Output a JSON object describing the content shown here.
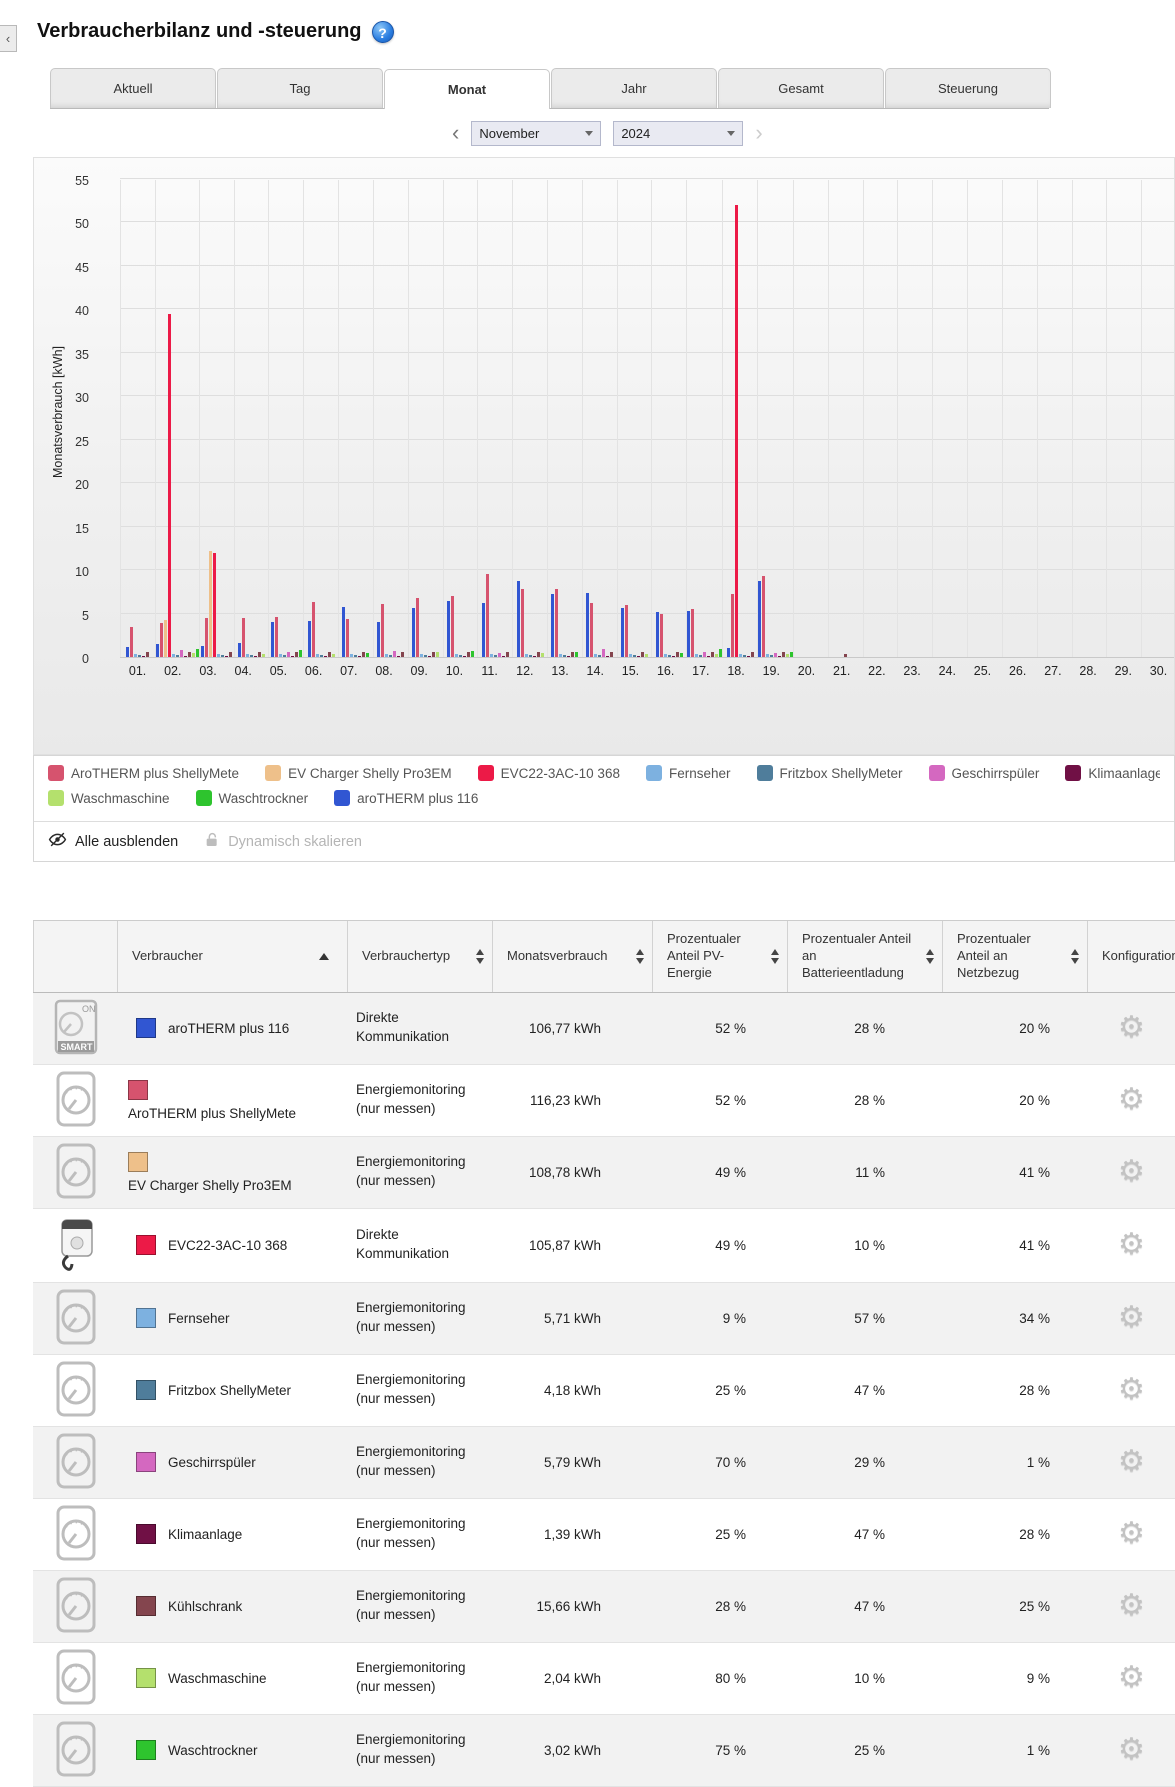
{
  "page": {
    "title": "Verbraucherbilanz und -steuerung"
  },
  "icons": {
    "collapse": "‹",
    "prev": "‹",
    "next": "›",
    "gear": "⚙",
    "smart_on": "ON",
    "smart_label": "SMART",
    "help": "?"
  },
  "tabs": {
    "items": [
      {
        "label": "Aktuell"
      },
      {
        "label": "Tag"
      },
      {
        "label": "Monat"
      },
      {
        "label": "Jahr"
      },
      {
        "label": "Gesamt"
      },
      {
        "label": "Steuerung"
      }
    ]
  },
  "date_nav": {
    "month": "November",
    "year": "2024"
  },
  "chart_data": {
    "type": "bar",
    "title": "",
    "xlabel": "",
    "ylabel": "Monatsverbrauch [kWh]",
    "ylim": [
      0,
      55
    ],
    "ytick_step": 5,
    "grid": true,
    "legend_position": "bottom",
    "categories": [
      "01.",
      "02.",
      "03.",
      "04.",
      "05.",
      "06.",
      "07.",
      "08.",
      "09.",
      "10.",
      "11.",
      "12.",
      "13.",
      "14.",
      "15.",
      "16.",
      "17.",
      "18.",
      "19.",
      "20.",
      "21.",
      "22.",
      "23.",
      "24.",
      "25.",
      "26.",
      "27.",
      "28.",
      "29.",
      "30."
    ],
    "series": [
      {
        "name": "aroTHERM plus 116",
        "color": "#3156d2",
        "values": [
          1.2,
          1.5,
          1.3,
          1.6,
          4.0,
          4.2,
          5.8,
          4.0,
          5.6,
          6.4,
          6.2,
          8.8,
          7.3,
          7.4,
          5.6,
          5.2,
          5.3,
          1.0,
          8.7,
          0,
          0,
          0,
          0,
          0,
          0,
          0,
          0,
          0,
          0,
          0
        ]
      },
      {
        "name": "AroTHERM plus ShellyMete",
        "color": "#d6536e",
        "values": [
          3.5,
          3.9,
          4.5,
          4.5,
          4.6,
          6.3,
          4.4,
          6.1,
          6.8,
          7.0,
          9.5,
          7.8,
          7.8,
          6.2,
          6.0,
          5.0,
          5.5,
          7.2,
          9.3,
          0,
          0,
          0,
          0,
          0,
          0,
          0,
          0,
          0,
          0,
          0
        ]
      },
      {
        "name": "EV Charger Shelly Pro3EM",
        "color": "#eec08a",
        "values": [
          0,
          4.3,
          12.2,
          0,
          0,
          0,
          0,
          0,
          0,
          0,
          0,
          0,
          0,
          0,
          0,
          0,
          0,
          0,
          0,
          0,
          0,
          0,
          0,
          0,
          0,
          0,
          0,
          0,
          0,
          0
        ]
      },
      {
        "name": "EVC22-3AC-10 368",
        "color": "#ec1a47",
        "values": [
          0,
          39.5,
          12.0,
          0,
          0,
          0,
          0,
          0,
          0,
          0,
          0,
          0,
          0,
          0,
          0,
          0,
          0,
          52,
          0,
          0,
          0,
          0,
          0,
          0,
          0,
          0,
          0,
          0,
          0,
          0
        ]
      },
      {
        "name": "Fernseher",
        "color": "#7db1e0",
        "values": [
          0.4,
          0.4,
          0.4,
          0.4,
          0.4,
          0.4,
          0.4,
          0.4,
          0.4,
          0.4,
          0.4,
          0.4,
          0.4,
          0.4,
          0.4,
          0.4,
          0.4,
          0.4,
          0.4,
          0,
          0,
          0,
          0,
          0,
          0,
          0,
          0,
          0,
          0,
          0
        ]
      },
      {
        "name": "Fritzbox ShellyMeter",
        "color": "#4f7d9b",
        "values": [
          0.25,
          0.25,
          0.25,
          0.25,
          0.25,
          0.25,
          0.25,
          0.25,
          0.25,
          0.25,
          0.25,
          0.25,
          0.25,
          0.25,
          0.25,
          0.25,
          0.25,
          0.25,
          0.25,
          0,
          0,
          0,
          0,
          0,
          0,
          0,
          0,
          0,
          0,
          0
        ]
      },
      {
        "name": "Geschirrspüler",
        "color": "#d468c0",
        "values": [
          0,
          0.8,
          0,
          0,
          0.6,
          0,
          0,
          0.7,
          0,
          0,
          0.5,
          0,
          0,
          0.9,
          0,
          0,
          0.6,
          0,
          0.5,
          0,
          0,
          0,
          0,
          0,
          0,
          0,
          0,
          0,
          0,
          0
        ]
      },
      {
        "name": "Klimaanlage",
        "color": "#701045",
        "values": [
          0.15,
          0.15,
          0.15,
          0.15,
          0.15,
          0.15,
          0.15,
          0.15,
          0.15,
          0.15,
          0.15,
          0.15,
          0.15,
          0.15,
          0.15,
          0.15,
          0.15,
          0.15,
          0.15,
          0,
          0,
          0,
          0,
          0,
          0,
          0,
          0,
          0,
          0,
          0
        ]
      },
      {
        "name": "Kühlschrank",
        "color": "#84454e",
        "values": [
          0.55,
          0.55,
          0.55,
          0.55,
          0.55,
          0.55,
          0.55,
          0.55,
          0.55,
          0.55,
          0.55,
          0.55,
          0.55,
          0.55,
          0.55,
          0.55,
          0.55,
          0.55,
          0.55,
          0,
          0.4,
          0,
          0,
          0,
          0,
          0,
          0,
          0,
          0,
          0
        ]
      },
      {
        "name": "Waschmaschine",
        "color": "#b4e06d",
        "values": [
          0,
          0.5,
          0,
          0.3,
          0,
          0.4,
          0,
          0,
          0.6,
          0,
          0,
          0.5,
          0,
          0,
          0.3,
          0,
          0.4,
          0,
          0.3,
          0,
          0,
          0,
          0,
          0,
          0,
          0,
          0,
          0,
          0,
          0
        ]
      },
      {
        "name": "Waschtrockner",
        "color": "#2ec42e",
        "values": [
          0,
          0.9,
          0,
          0,
          0.8,
          0,
          0.5,
          0,
          0,
          0.7,
          0,
          0,
          0.6,
          0,
          0,
          0.5,
          0.9,
          0,
          0.6,
          0,
          0,
          0,
          0,
          0,
          0,
          0,
          0,
          0,
          0,
          0
        ]
      }
    ]
  },
  "legend": {
    "rows": [
      {
        "items": [
          {
            "label": "AroTHERM plus ShellyMete",
            "color": "#d6536e"
          },
          {
            "label": "EV Charger Shelly Pro3EM",
            "color": "#eec08a"
          },
          {
            "label": "EVC22-3AC-10 368",
            "color": "#ec1a47"
          },
          {
            "label": "Fernseher",
            "color": "#7db1e0"
          },
          {
            "label": "Fritzbox ShellyMeter",
            "color": "#4f7d9b"
          },
          {
            "label": "Geschirrspüler",
            "color": "#d468c0"
          },
          {
            "label": "Klimaanlage",
            "color": "#701045"
          },
          {
            "label": "Kühlschrank",
            "color": "#84454e"
          }
        ]
      },
      {
        "items": [
          {
            "label": "Waschmaschine",
            "color": "#b4e06d"
          },
          {
            "label": "Waschtrockner",
            "color": "#2ec42e"
          },
          {
            "label": "aroTHERM plus 116",
            "color": "#3156d2"
          }
        ]
      }
    ]
  },
  "chart_actions": {
    "hide_all": "Alle ausblenden",
    "dynamic_scale": "Dynamisch skalieren"
  },
  "table": {
    "columns": [
      {
        "label": ""
      },
      {
        "label": "Verbraucher",
        "sort": "asc"
      },
      {
        "label": "Verbrauchertyp",
        "sort": "both"
      },
      {
        "label": "Monatsverbrauch",
        "sort": "both"
      },
      {
        "label": "Prozentualer Anteil PV-Energie",
        "sort": "both"
      },
      {
        "label": "Prozentualer Anteil an Batterieentladung",
        "sort": "both"
      },
      {
        "label": "Prozentualer Anteil an Netzbezug",
        "sort": "both"
      },
      {
        "label": "Konfiguration"
      }
    ],
    "rows": [
      {
        "icon": "smart-meter-toggle",
        "color": "#3156d2",
        "name": "aroTHERM plus 116",
        "type": "Direkte Kommunikation",
        "consumption": "106,77 kWh",
        "pv": "52 %",
        "battery": "28 %",
        "grid": "20 %"
      },
      {
        "icon": "meter-gauge",
        "color": "#d6536e",
        "name": "AroTHERM plus ShellyMete",
        "type": "Energiemonitoring (nur messen)",
        "consumption": "116,23 kWh",
        "pv": "52 %",
        "battery": "28 %",
        "grid": "20 %"
      },
      {
        "icon": "meter-gauge",
        "color": "#eec08a",
        "name": "EV Charger Shelly Pro3EM",
        "type": "Energiemonitoring (nur messen)",
        "consumption": "108,78 kWh",
        "pv": "49 %",
        "battery": "11 %",
        "grid": "41 %"
      },
      {
        "icon": "wallbox",
        "color": "#ec1a47",
        "name": "EVC22-3AC-10 368",
        "type": "Direkte Kommunikation",
        "consumption": "105,87 kWh",
        "pv": "49 %",
        "battery": "10 %",
        "grid": "41 %"
      },
      {
        "icon": "meter-gauge",
        "color": "#7db1e0",
        "name": "Fernseher",
        "type": "Energiemonitoring (nur messen)",
        "consumption": "5,71 kWh",
        "pv": "9 %",
        "battery": "57 %",
        "grid": "34 %"
      },
      {
        "icon": "meter-gauge",
        "color": "#4f7d9b",
        "name": "Fritzbox ShellyMeter",
        "type": "Energiemonitoring (nur messen)",
        "consumption": "4,18 kWh",
        "pv": "25 %",
        "battery": "47 %",
        "grid": "28 %"
      },
      {
        "icon": "meter-gauge",
        "color": "#d468c0",
        "name": "Geschirrspüler",
        "type": "Energiemonitoring (nur messen)",
        "consumption": "5,79 kWh",
        "pv": "70 %",
        "battery": "29 %",
        "grid": "1 %"
      },
      {
        "icon": "meter-gauge",
        "color": "#701045",
        "name": "Klimaanlage",
        "type": "Energiemonitoring (nur messen)",
        "consumption": "1,39 kWh",
        "pv": "25 %",
        "battery": "47 %",
        "grid": "28 %"
      },
      {
        "icon": "meter-gauge",
        "color": "#84454e",
        "name": "Kühlschrank",
        "type": "Energiemonitoring (nur messen)",
        "consumption": "15,66 kWh",
        "pv": "28 %",
        "battery": "47 %",
        "grid": "25 %"
      },
      {
        "icon": "meter-gauge",
        "color": "#b4e06d",
        "name": "Waschmaschine",
        "type": "Energiemonitoring (nur messen)",
        "consumption": "2,04 kWh",
        "pv": "80 %",
        "battery": "10 %",
        "grid": "9 %"
      },
      {
        "icon": "meter-gauge",
        "color": "#2ec42e",
        "name": "Waschtrockner",
        "type": "Energiemonitoring (nur messen)",
        "consumption": "3,02 kWh",
        "pv": "75 %",
        "battery": "25 %",
        "grid": "1 %"
      }
    ]
  }
}
